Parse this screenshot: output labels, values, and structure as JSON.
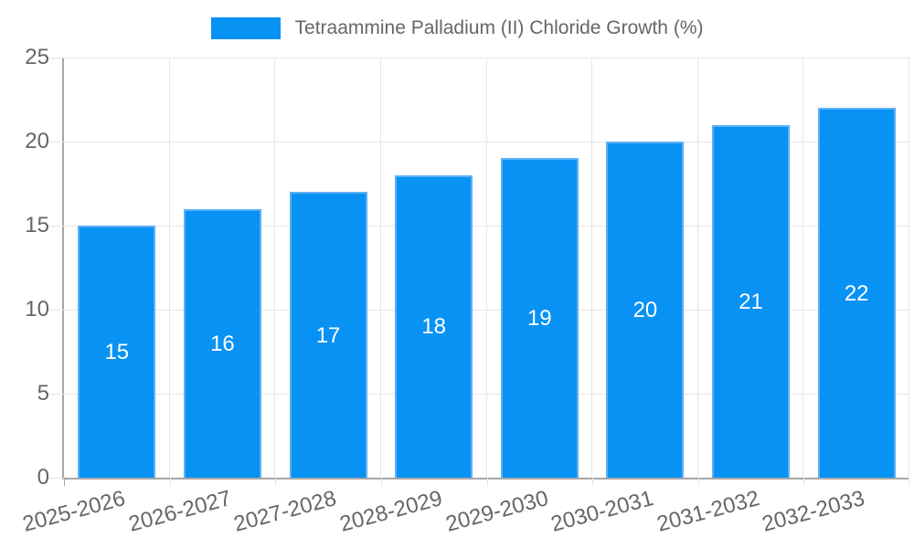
{
  "chart_data": {
    "type": "bar",
    "title": "Tetraammine Palladium (II) Chloride Growth (%)",
    "legend_position": "top",
    "categories": [
      "2025-2026",
      "2026-2027",
      "2027-2028",
      "2028-2029",
      "2029-2030",
      "2030-2031",
      "2031-2032",
      "2032-2033"
    ],
    "values": [
      15,
      16,
      17,
      18,
      19,
      20,
      21,
      22
    ],
    "bar_labels": [
      "15",
      "16",
      "17",
      "18",
      "19",
      "20",
      "21",
      "22"
    ],
    "xlabel": "",
    "ylabel": "",
    "ylim": [
      0,
      25
    ],
    "yticks": [
      0,
      5,
      10,
      15,
      20,
      25
    ],
    "grid": true,
    "x_label_rotation_deg": -15,
    "colors": {
      "bar_fill": "#0892f4",
      "bar_border": "#5cb0f6",
      "grid_line": "#e6e6e6",
      "axis_line": "#a6a6a6",
      "tick_text": "#666666",
      "legend_text": "#666666",
      "bar_label_text": "#ffffff",
      "background": "#ffffff"
    }
  }
}
